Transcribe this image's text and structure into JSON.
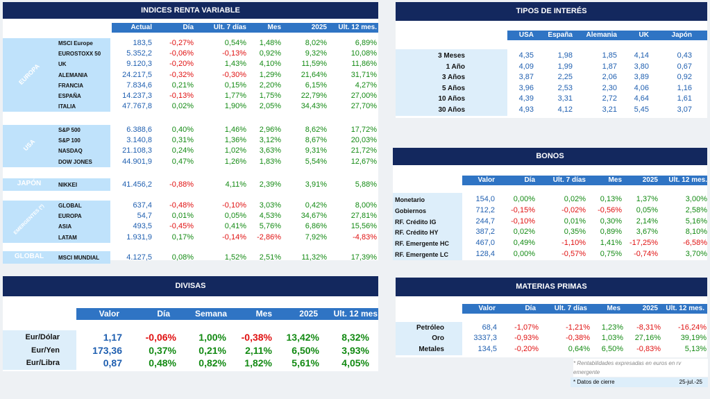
{
  "rv": {
    "title": "INDICES RENTA VARIABLE",
    "headers": [
      "Actual",
      "Día",
      "Ult. 7 días",
      "Mes",
      "2025",
      "Ult. 12 mes."
    ],
    "groups": [
      {
        "label": "EUROPA",
        "rows": [
          [
            "MSCI Europe",
            "183,5",
            "-0,27%",
            "0,54%",
            "1,48%",
            "8,02%",
            "6,89%"
          ],
          [
            "EUROSTOXX 50",
            "5.352,2",
            "-0,06%",
            "-0,13%",
            "0,92%",
            "9,32%",
            "10,08%"
          ],
          [
            "UK",
            "9.120,3",
            "-0,20%",
            "1,43%",
            "4,10%",
            "11,59%",
            "11,86%"
          ],
          [
            "ALEMANIA",
            "24.217,5",
            "-0,32%",
            "-0,30%",
            "1,29%",
            "21,64%",
            "31,71%"
          ],
          [
            "FRANCIA",
            "7.834,6",
            "0,21%",
            "0,15%",
            "2,20%",
            "6,15%",
            "4,27%"
          ],
          [
            "ESPAÑA",
            "14.237,3",
            "-0,13%",
            "1,77%",
            "1,75%",
            "22,79%",
            "27,00%"
          ],
          [
            "ITALIA",
            "47.767,8",
            "0,02%",
            "1,90%",
            "2,05%",
            "34,43%",
            "27,70%"
          ]
        ]
      },
      {
        "label": "USA",
        "rows": [
          [
            "S&P 500",
            "6.388,6",
            "0,40%",
            "1,46%",
            "2,96%",
            "8,62%",
            "17,72%"
          ],
          [
            "S&P 100",
            "3.140,8",
            "0,31%",
            "1,36%",
            "3,12%",
            "8,67%",
            "20,03%"
          ],
          [
            "NASDAQ",
            "21.108,3",
            "0,24%",
            "1,02%",
            "3,63%",
            "9,31%",
            "21,72%"
          ],
          [
            "DOW JONES",
            "44.901,9",
            "0,47%",
            "1,26%",
            "1,83%",
            "5,54%",
            "12,67%"
          ]
        ]
      },
      {
        "label": "JAPÓN",
        "rows": [
          [
            "NIKKEI",
            "41.456,2",
            "-0,88%",
            "4,11%",
            "2,39%",
            "3,91%",
            "5,88%"
          ]
        ]
      },
      {
        "label": "EMERGENTES (*)",
        "rows": [
          [
            "GLOBAL",
            "637,4",
            "-0,48%",
            "-0,10%",
            "3,03%",
            "0,42%",
            "8,00%"
          ],
          [
            "EUROPA",
            "54,7",
            "0,01%",
            "0,05%",
            "4,53%",
            "34,67%",
            "27,81%"
          ],
          [
            "ASIA",
            "493,5",
            "-0,45%",
            "0,41%",
            "5,76%",
            "6,86%",
            "15,56%"
          ],
          [
            "LATAM",
            "1.931,9",
            "0,17%",
            "-0,14%",
            "-2,86%",
            "7,92%",
            "-4,83%"
          ]
        ]
      },
      {
        "label": "GLOBAL",
        "rows": [
          [
            "MSCI MUNDIAL",
            "4.127,5",
            "0,08%",
            "1,52%",
            "2,51%",
            "11,32%",
            "17,39%"
          ]
        ]
      }
    ]
  },
  "ti": {
    "title": "TIPOS DE INTERÉS",
    "headers": [
      "USA",
      "España",
      "Alemania",
      "UK",
      "Japón"
    ],
    "rows": [
      [
        "3 Meses",
        "4,35",
        "1,98",
        "1,85",
        "4,14",
        "0,43"
      ],
      [
        "1 Año",
        "4,09",
        "1,99",
        "1,87",
        "3,80",
        "0,67"
      ],
      [
        "3 Años",
        "3,87",
        "2,25",
        "2,06",
        "3,89",
        "0,92"
      ],
      [
        "5 Años",
        "3,96",
        "2,53",
        "2,30",
        "4,06",
        "1,16"
      ],
      [
        "10 Años",
        "4,39",
        "3,31",
        "2,72",
        "4,64",
        "1,61"
      ],
      [
        "30 Años",
        "4,93",
        "4,12",
        "3,21",
        "5,45",
        "3,07"
      ]
    ]
  },
  "bonos": {
    "title": "BONOS",
    "headers": [
      "Valor",
      "Día",
      "Ult. 7 días",
      "Mes",
      "2025",
      "Ult. 12 mes."
    ],
    "rows": [
      [
        "Monetario",
        "154,0",
        "0,00%",
        "0,02%",
        "0,13%",
        "1,37%",
        "3,00%"
      ],
      [
        "Gobiernos",
        "712,2",
        "-0,15%",
        "-0,02%",
        "-0,56%",
        "0,05%",
        "2,58%"
      ],
      [
        "RF. Crédito IG",
        "244,7",
        "-0,10%",
        "0,01%",
        "0,30%",
        "2,14%",
        "5,16%"
      ],
      [
        "RF. Crédito HY",
        "387,2",
        "0,02%",
        "0,35%",
        "0,89%",
        "3,67%",
        "8,10%"
      ],
      [
        "RF. Emergente HC",
        "467,0",
        "0,49%",
        "-1,10%",
        "1,41%",
        "-17,25%",
        "-6,58%"
      ],
      [
        "RF. Emergente LC",
        "128,4",
        "0,00%",
        "-0,57%",
        "0,75%",
        "-0,74%",
        "3,70%"
      ]
    ]
  },
  "divisas": {
    "title": "DIVISAS",
    "headers": [
      "Valor",
      "Día",
      "Semana",
      "Mes",
      "2025",
      "Ult. 12 mes"
    ],
    "rows": [
      [
        "Eur/Dólar",
        "1,17",
        "-0,06%",
        "1,00%",
        "-0,38%",
        "13,42%",
        "8,32%"
      ],
      [
        "Eur/Yen",
        "173,36",
        "0,37%",
        "0,21%",
        "2,11%",
        "6,50%",
        "3,93%"
      ],
      [
        "Eur/Libra",
        "0,87",
        "0,48%",
        "0,82%",
        "1,82%",
        "5,61%",
        "4,05%"
      ]
    ]
  },
  "mp": {
    "title": "MATERIAS PRIMAS",
    "headers": [
      "Valor",
      "Día",
      "Ult. 7 días",
      "Mes",
      "2025",
      "Ult. 12 mes."
    ],
    "rows": [
      [
        "Petróleo",
        "68,4",
        "-1,07%",
        "-1,21%",
        "1,23%",
        "-8,31%",
        "-16,24%"
      ],
      [
        "Oro",
        "3337,3",
        "-0,93%",
        "-0,38%",
        "1,03%",
        "27,16%",
        "39,19%"
      ],
      [
        "Metales",
        "134,5",
        "-0,20%",
        "0,64%",
        "6,50%",
        "-0,83%",
        "5,13%"
      ]
    ],
    "footnote": "* Rentabilidades expresadas en euros en rv emergente",
    "cierre_label": "* Datos de cierre",
    "cierre_date": "25-jul.-25"
  },
  "colors": {
    "navy": "#13285e",
    "header_blue": "#2f74c4",
    "positive": "#138a13",
    "negative": "#e01010",
    "value_blue": "#1f5fb0"
  }
}
